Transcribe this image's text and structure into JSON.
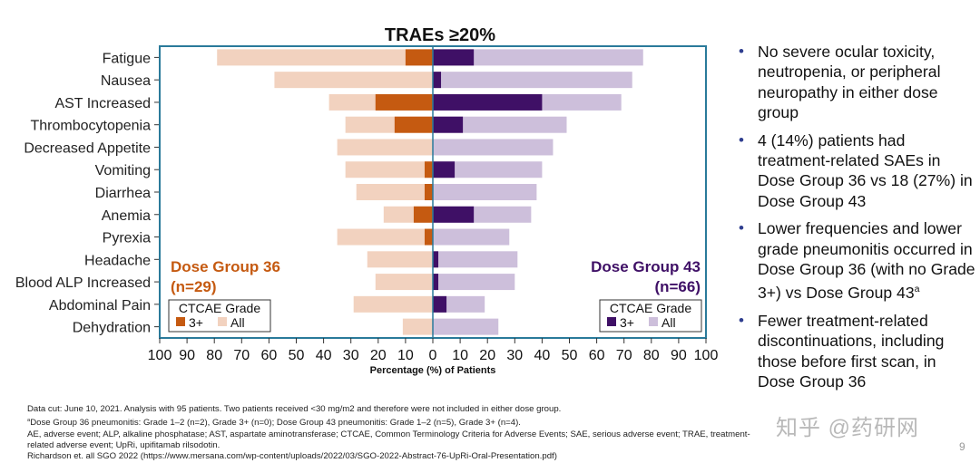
{
  "chart_data": {
    "type": "bar",
    "orientation": "horizontal-diverging",
    "title": "TRAEs ≥20%",
    "xlabel": "Percentage (%) of Patients",
    "xlim": [
      -100,
      100
    ],
    "x_ticks": [
      "100",
      "90",
      "80",
      "70",
      "60",
      "50",
      "40",
      "30",
      "20",
      "10",
      "0",
      "10",
      "20",
      "30",
      "40",
      "50",
      "60",
      "70",
      "80",
      "90",
      "100"
    ],
    "categories": [
      "Fatigue",
      "Nausea",
      "AST Increased",
      "Thrombocytopenia",
      "Decreased Appetite",
      "Vomiting",
      "Diarrhea",
      "Anemia",
      "Pyrexia",
      "Headache",
      "Blood ALP Increased",
      "Abdominal Pain",
      "Dehydration"
    ],
    "groups": [
      {
        "name": "Dose Group 36",
        "n_label": "(n=29)",
        "side": "left",
        "legend_title": "CTCAE Grade",
        "legend_items": [
          "3+",
          "All"
        ],
        "series": [
          {
            "name": "All",
            "values": [
              79,
              58,
              38,
              32,
              35,
              32,
              28,
              18,
              35,
              24,
              21,
              29,
              11
            ]
          },
          {
            "name": "3+",
            "values": [
              10,
              0,
              21,
              14,
              0,
              3,
              3,
              7,
              3,
              0,
              0,
              0,
              0
            ]
          }
        ]
      },
      {
        "name": "Dose Group 43",
        "n_label": "(n=66)",
        "side": "right",
        "legend_title": "CTCAE Grade",
        "legend_items": [
          "3+",
          "All"
        ],
        "series": [
          {
            "name": "All",
            "values": [
              77,
              73,
              69,
              49,
              44,
              40,
              38,
              36,
              28,
              31,
              30,
              19,
              24
            ]
          },
          {
            "name": "3+",
            "values": [
              15,
              3,
              40,
              11,
              0,
              8,
              0,
              15,
              0,
              2,
              2,
              5,
              0
            ]
          }
        ]
      }
    ]
  },
  "colors": {
    "left_all": "#f2d2bf",
    "left_3plus": "#c55a11",
    "right_all": "#cdbfdb",
    "right_3plus": "#3f1066",
    "frame": "#2a7a9a",
    "bullet": "#2f3e8f"
  },
  "bullets": [
    "No severe ocular toxicity, neutropenia, or peripheral neuropathy in either dose group",
    "4 (14%) patients had treatment-related SAEs in Dose Group 36 vs 18 (27%) in Dose Group 43",
    "Lower frequencies and lower grade pneumonitis occurred in Dose Group 36 (with no Grade 3+) vs Dose Group 43",
    "Fewer treatment-related discontinuations, including those before first scan, in Dose Group 36"
  ],
  "bullet_sup": "a",
  "footnotes": {
    "line1": "Data cut: June 10, 2021. Analysis with 95 patients. Two patients received <30 mg/m2 and therefore were not included in either dose group.",
    "line2_sup": "a",
    "line2": "Dose Group 36 pneumonitis: Grade 1–2 (n=2), Grade 3+ (n=0); Dose Group 43 pneumonitis: Grade 1–2 (n=5), Grade 3+ (n=4).",
    "line3": "AE, adverse event; ALP, alkaline phosphatase; AST, aspartate aminotransferase; CTCAE, Common Terminology Criteria for Adverse Events; SAE, serious adverse event; TRAE, treatment-",
    "line4": "related adverse event; UpRi, upifitamab rilsodotin.",
    "line5": "Richardson et. all SGO 2022 (https://www.mersana.com/wp-content/uploads/2022/03/SGO-2022-Abstract-76-UpRi-Oral-Presentation.pdf)"
  },
  "watermark": "知乎 @药研网",
  "page_number": "9"
}
